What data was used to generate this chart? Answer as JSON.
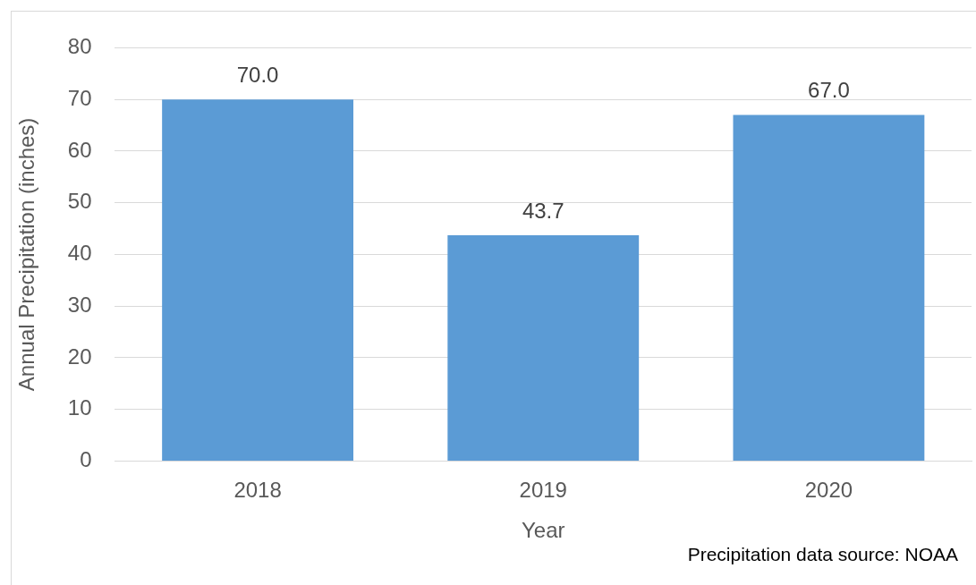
{
  "chart_data": {
    "type": "bar",
    "xlabel": "Year",
    "ylabel": "Annual Precipitation (inches)",
    "categories": [
      "2018",
      "2019",
      "2020"
    ],
    "values": [
      70.0,
      43.7,
      67.0
    ],
    "value_labels": [
      "70.0",
      "43.7",
      "67.0"
    ],
    "color": "#5b9bd5",
    "ylim": [
      0,
      80
    ],
    "yticks": [
      0,
      10,
      20,
      30,
      40,
      50,
      60,
      70,
      80
    ],
    "grid": "y",
    "legend": false,
    "annotations": [
      "Precipitation data source: NOAA"
    ]
  }
}
